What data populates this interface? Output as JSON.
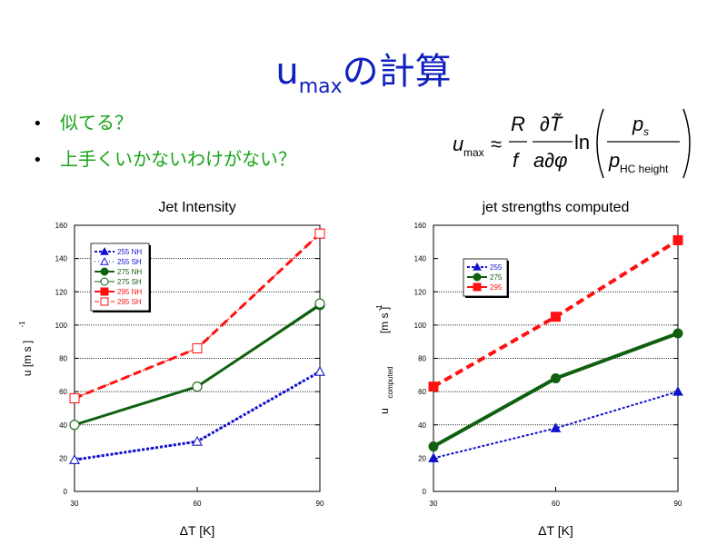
{
  "slide": {
    "title_main": "u",
    "title_sub": "max",
    "title_rest": "の計算",
    "bullets": [
      "似てる？",
      "上手くいかないわけがない？"
    ]
  },
  "formula": {
    "lhs": "u",
    "lhs_sub": "max",
    "approx": "≈",
    "R": "R",
    "f": "f",
    "dT": "∂T̃",
    "adphi": "a∂φ",
    "ln": "ln",
    "ps": "p",
    "ps_sub": "s",
    "phc": "p",
    "phc_sub": "HC height"
  },
  "colors": {
    "title": "#1020c0",
    "bullets": "#19a319",
    "blue": "#1010d0",
    "green": "#106010",
    "red": "#ff1010"
  },
  "chart_data": [
    {
      "type": "line",
      "title": "Jet Intensity",
      "xlabel": "ΔT [K]",
      "ylabel": "u [m s  ]",
      "ylabel_sup": "-1",
      "x": [
        30,
        60,
        90
      ],
      "xlim": [
        30,
        90
      ],
      "ylim": [
        0,
        160
      ],
      "yticks": [
        0,
        20,
        40,
        60,
        80,
        100,
        120,
        140,
        160
      ],
      "xticks": [
        30,
        60,
        90
      ],
      "gridlines": [
        40,
        60,
        80,
        100,
        120,
        140
      ],
      "legend_position": "top-left",
      "series": [
        {
          "name": "255 NH",
          "values": [
            19,
            30,
            72
          ],
          "color": "#1010d0",
          "style": "dotted",
          "marker": "triangle",
          "filled": true,
          "width": 3
        },
        {
          "name": "255 SH",
          "values": [
            19,
            30,
            72
          ],
          "color": "#1010d0",
          "style": "dotted-thin",
          "marker": "triangle",
          "filled": false,
          "width": 1
        },
        {
          "name": "275 NH",
          "values": [
            40,
            63,
            112
          ],
          "color": "#106010",
          "style": "solid",
          "marker": "circle",
          "filled": true,
          "width": 3
        },
        {
          "name": "275 SH",
          "values": [
            40,
            63,
            113
          ],
          "color": "#106010",
          "style": "solid",
          "marker": "circle",
          "filled": false,
          "width": 1
        },
        {
          "name": "295 NH",
          "values": [
            56,
            86,
            155
          ],
          "color": "#ff1010",
          "style": "dashed",
          "marker": "square",
          "filled": true,
          "width": 3
        },
        {
          "name": "295 SH",
          "values": [
            56,
            86,
            155
          ],
          "color": "#ff1010",
          "style": "dashed-thin",
          "marker": "square",
          "filled": false,
          "width": 1
        }
      ]
    },
    {
      "type": "line",
      "title": "jet strengths computed",
      "xlabel": "ΔT [K]",
      "ylabel": "u",
      "ylabel_sub": "computed",
      "ylabel_unit": "[m s  ]",
      "ylabel_sup": "-1",
      "x": [
        30,
        60,
        90
      ],
      "xlim": [
        30,
        90
      ],
      "ylim": [
        0,
        160
      ],
      "yticks": [
        0,
        20,
        40,
        60,
        80,
        100,
        120,
        140,
        160
      ],
      "xticks": [
        30,
        60,
        90
      ],
      "gridlines": [
        40,
        60,
        80,
        100,
        120
      ],
      "legend_position": "top-left",
      "series": [
        {
          "name": "255",
          "values": [
            20,
            38,
            60
          ],
          "color": "#1010d0",
          "style": "dotted",
          "marker": "triangle",
          "filled": true,
          "width": 2
        },
        {
          "name": "275",
          "values": [
            27,
            68,
            95
          ],
          "color": "#106010",
          "style": "solid",
          "marker": "circle",
          "filled": true,
          "width": 4
        },
        {
          "name": "295",
          "values": [
            63,
            105,
            151
          ],
          "color": "#ff1010",
          "style": "dashed",
          "marker": "square",
          "filled": true,
          "width": 4
        }
      ]
    }
  ]
}
